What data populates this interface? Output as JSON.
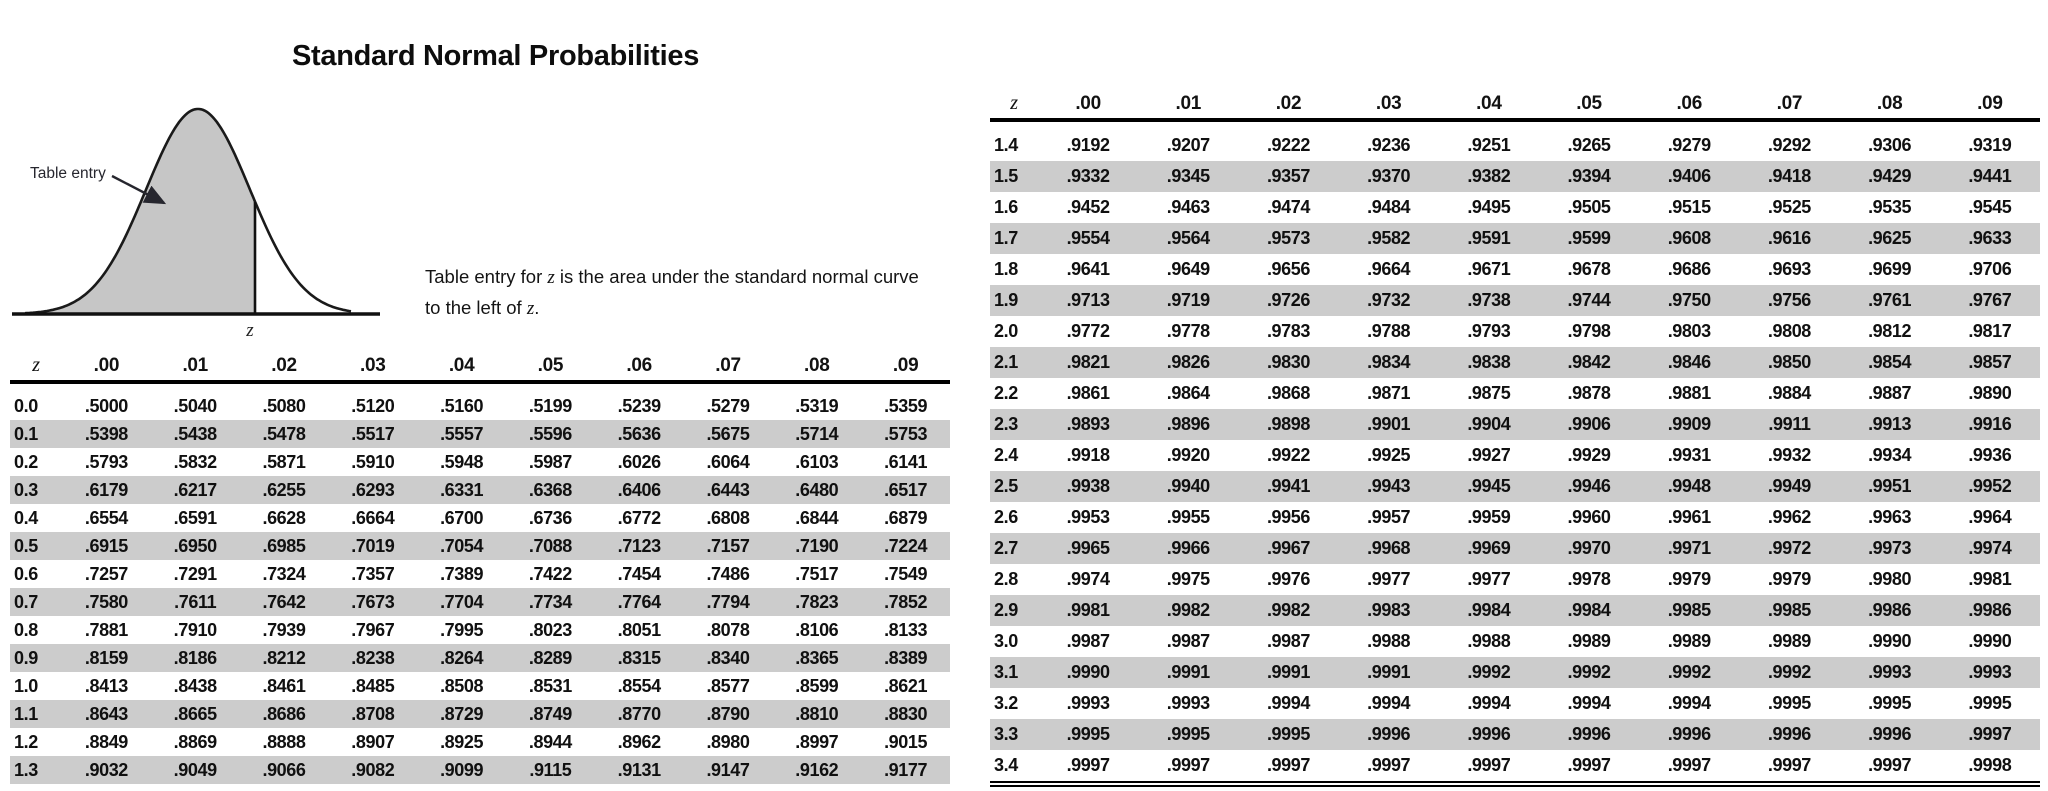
{
  "page_title": "Standard Normal Probabilities",
  "diagram": {
    "annotation": "Table entry",
    "z_label": "z"
  },
  "caption": {
    "before_z1": "Table entry for ",
    "z1": "z",
    "after_z1": " is the area under the standard normal curve",
    "before_z2": "to the left of ",
    "z2": "z",
    "after_z2": "."
  },
  "columns": [
    "z",
    ".00",
    ".01",
    ".02",
    ".03",
    ".04",
    ".05",
    ".06",
    ".07",
    ".08",
    ".09"
  ],
  "left_table": {
    "rows": [
      {
        "z": "0.0",
        "values": [
          ".5000",
          ".5040",
          ".5080",
          ".5120",
          ".5160",
          ".5199",
          ".5239",
          ".5279",
          ".5319",
          ".5359"
        ]
      },
      {
        "z": "0.1",
        "values": [
          ".5398",
          ".5438",
          ".5478",
          ".5517",
          ".5557",
          ".5596",
          ".5636",
          ".5675",
          ".5714",
          ".5753"
        ]
      },
      {
        "z": "0.2",
        "values": [
          ".5793",
          ".5832",
          ".5871",
          ".5910",
          ".5948",
          ".5987",
          ".6026",
          ".6064",
          ".6103",
          ".6141"
        ]
      },
      {
        "z": "0.3",
        "values": [
          ".6179",
          ".6217",
          ".6255",
          ".6293",
          ".6331",
          ".6368",
          ".6406",
          ".6443",
          ".6480",
          ".6517"
        ]
      },
      {
        "z": "0.4",
        "values": [
          ".6554",
          ".6591",
          ".6628",
          ".6664",
          ".6700",
          ".6736",
          ".6772",
          ".6808",
          ".6844",
          ".6879"
        ]
      },
      {
        "z": "0.5",
        "values": [
          ".6915",
          ".6950",
          ".6985",
          ".7019",
          ".7054",
          ".7088",
          ".7123",
          ".7157",
          ".7190",
          ".7224"
        ]
      },
      {
        "z": "0.6",
        "values": [
          ".7257",
          ".7291",
          ".7324",
          ".7357",
          ".7389",
          ".7422",
          ".7454",
          ".7486",
          ".7517",
          ".7549"
        ]
      },
      {
        "z": "0.7",
        "values": [
          ".7580",
          ".7611",
          ".7642",
          ".7673",
          ".7704",
          ".7734",
          ".7764",
          ".7794",
          ".7823",
          ".7852"
        ]
      },
      {
        "z": "0.8",
        "values": [
          ".7881",
          ".7910",
          ".7939",
          ".7967",
          ".7995",
          ".8023",
          ".8051",
          ".8078",
          ".8106",
          ".8133"
        ]
      },
      {
        "z": "0.9",
        "values": [
          ".8159",
          ".8186",
          ".8212",
          ".8238",
          ".8264",
          ".8289",
          ".8315",
          ".8340",
          ".8365",
          ".8389"
        ]
      },
      {
        "z": "1.0",
        "values": [
          ".8413",
          ".8438",
          ".8461",
          ".8485",
          ".8508",
          ".8531",
          ".8554",
          ".8577",
          ".8599",
          ".8621"
        ]
      },
      {
        "z": "1.1",
        "values": [
          ".8643",
          ".8665",
          ".8686",
          ".8708",
          ".8729",
          ".8749",
          ".8770",
          ".8790",
          ".8810",
          ".8830"
        ]
      },
      {
        "z": "1.2",
        "values": [
          ".8849",
          ".8869",
          ".8888",
          ".8907",
          ".8925",
          ".8944",
          ".8962",
          ".8980",
          ".8997",
          ".9015"
        ]
      },
      {
        "z": "1.3",
        "values": [
          ".9032",
          ".9049",
          ".9066",
          ".9082",
          ".9099",
          ".9115",
          ".9131",
          ".9147",
          ".9162",
          ".9177"
        ]
      }
    ]
  },
  "right_table": {
    "rows": [
      {
        "z": "1.4",
        "values": [
          ".9192",
          ".9207",
          ".9222",
          ".9236",
          ".9251",
          ".9265",
          ".9279",
          ".9292",
          ".9306",
          ".9319"
        ]
      },
      {
        "z": "1.5",
        "values": [
          ".9332",
          ".9345",
          ".9357",
          ".9370",
          ".9382",
          ".9394",
          ".9406",
          ".9418",
          ".9429",
          ".9441"
        ]
      },
      {
        "z": "1.6",
        "values": [
          ".9452",
          ".9463",
          ".9474",
          ".9484",
          ".9495",
          ".9505",
          ".9515",
          ".9525",
          ".9535",
          ".9545"
        ]
      },
      {
        "z": "1.7",
        "values": [
          ".9554",
          ".9564",
          ".9573",
          ".9582",
          ".9591",
          ".9599",
          ".9608",
          ".9616",
          ".9625",
          ".9633"
        ]
      },
      {
        "z": "1.8",
        "values": [
          ".9641",
          ".9649",
          ".9656",
          ".9664",
          ".9671",
          ".9678",
          ".9686",
          ".9693",
          ".9699",
          ".9706"
        ]
      },
      {
        "z": "1.9",
        "values": [
          ".9713",
          ".9719",
          ".9726",
          ".9732",
          ".9738",
          ".9744",
          ".9750",
          ".9756",
          ".9761",
          ".9767"
        ]
      },
      {
        "z": "2.0",
        "values": [
          ".9772",
          ".9778",
          ".9783",
          ".9788",
          ".9793",
          ".9798",
          ".9803",
          ".9808",
          ".9812",
          ".9817"
        ]
      },
      {
        "z": "2.1",
        "values": [
          ".9821",
          ".9826",
          ".9830",
          ".9834",
          ".9838",
          ".9842",
          ".9846",
          ".9850",
          ".9854",
          ".9857"
        ]
      },
      {
        "z": "2.2",
        "values": [
          ".9861",
          ".9864",
          ".9868",
          ".9871",
          ".9875",
          ".9878",
          ".9881",
          ".9884",
          ".9887",
          ".9890"
        ]
      },
      {
        "z": "2.3",
        "values": [
          ".9893",
          ".9896",
          ".9898",
          ".9901",
          ".9904",
          ".9906",
          ".9909",
          ".9911",
          ".9913",
          ".9916"
        ]
      },
      {
        "z": "2.4",
        "values": [
          ".9918",
          ".9920",
          ".9922",
          ".9925",
          ".9927",
          ".9929",
          ".9931",
          ".9932",
          ".9934",
          ".9936"
        ]
      },
      {
        "z": "2.5",
        "values": [
          ".9938",
          ".9940",
          ".9941",
          ".9943",
          ".9945",
          ".9946",
          ".9948",
          ".9949",
          ".9951",
          ".9952"
        ]
      },
      {
        "z": "2.6",
        "values": [
          ".9953",
          ".9955",
          ".9956",
          ".9957",
          ".9959",
          ".9960",
          ".9961",
          ".9962",
          ".9963",
          ".9964"
        ]
      },
      {
        "z": "2.7",
        "values": [
          ".9965",
          ".9966",
          ".9967",
          ".9968",
          ".9969",
          ".9970",
          ".9971",
          ".9972",
          ".9973",
          ".9974"
        ]
      },
      {
        "z": "2.8",
        "values": [
          ".9974",
          ".9975",
          ".9976",
          ".9977",
          ".9977",
          ".9978",
          ".9979",
          ".9979",
          ".9980",
          ".9981"
        ]
      },
      {
        "z": "2.9",
        "values": [
          ".9981",
          ".9982",
          ".9982",
          ".9983",
          ".9984",
          ".9984",
          ".9985",
          ".9985",
          ".9986",
          ".9986"
        ]
      },
      {
        "z": "3.0",
        "values": [
          ".9987",
          ".9987",
          ".9987",
          ".9988",
          ".9988",
          ".9989",
          ".9989",
          ".9989",
          ".9990",
          ".9990"
        ]
      },
      {
        "z": "3.1",
        "values": [
          ".9990",
          ".9991",
          ".9991",
          ".9991",
          ".9992",
          ".9992",
          ".9992",
          ".9992",
          ".9993",
          ".9993"
        ]
      },
      {
        "z": "3.2",
        "values": [
          ".9993",
          ".9993",
          ".9994",
          ".9994",
          ".9994",
          ".9994",
          ".9994",
          ".9995",
          ".9995",
          ".9995"
        ]
      },
      {
        "z": "3.3",
        "values": [
          ".9995",
          ".9995",
          ".9995",
          ".9996",
          ".9996",
          ".9996",
          ".9996",
          ".9996",
          ".9996",
          ".9997"
        ]
      },
      {
        "z": "3.4",
        "values": [
          ".9997",
          ".9997",
          ".9997",
          ".9997",
          ".9997",
          ".9997",
          ".9997",
          ".9997",
          ".9997",
          ".9998"
        ]
      }
    ]
  },
  "colors": {
    "row_stripe": "#cccccc",
    "curve_fill": "#c6c6c6",
    "rule": "#000000"
  }
}
